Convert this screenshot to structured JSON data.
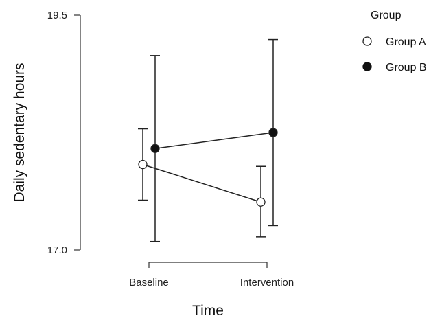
{
  "chart_data": {
    "type": "line",
    "title": "",
    "xlabel": "Time",
    "ylabel": "Daily sedentary hours",
    "categories": [
      "Baseline",
      "Intervention"
    ],
    "y_ticks": [
      "17.0",
      "19.5"
    ],
    "ylim": [
      17.0,
      19.5
    ],
    "legend_title": "Group",
    "legend_position": "top-right",
    "grid": false,
    "series": [
      {
        "name": "Group A",
        "marker": "open-circle",
        "values": [
          17.91,
          17.51
        ],
        "lower": [
          17.53,
          17.14
        ],
        "upper": [
          18.29,
          17.89
        ]
      },
      {
        "name": "Group B",
        "marker": "filled-circle",
        "values": [
          18.08,
          18.25
        ],
        "lower": [
          17.09,
          17.26
        ],
        "upper": [
          19.07,
          19.24
        ]
      }
    ]
  }
}
